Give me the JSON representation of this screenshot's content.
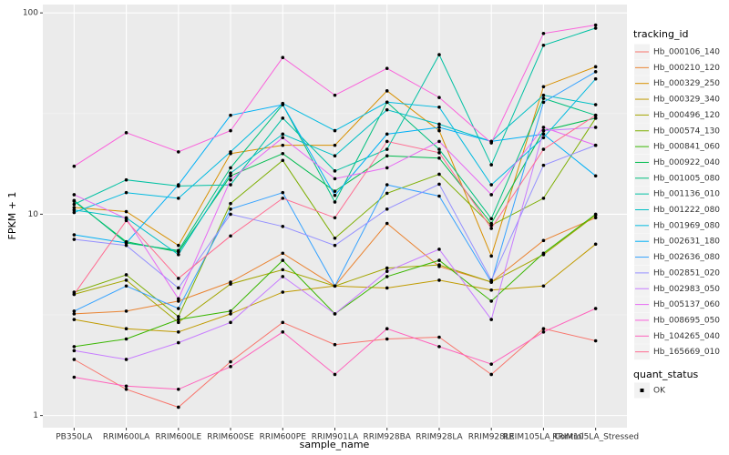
{
  "chart_data": {
    "type": "line",
    "log_y": true,
    "grid": true,
    "legend_position": "right",
    "x_label": "sample_name",
    "y_label": "FPKM + 1",
    "legend_title": "tracking_id",
    "shape_legend": {
      "title": "quant_status",
      "items": [
        "OK"
      ]
    },
    "categories": [
      "PB350LA",
      "RRIM600LA",
      "RRIM600LE",
      "RRIM600SE",
      "RRIM600PE",
      "RRIM901LA",
      "RRIM928BA",
      "RRIM928LA",
      "RRIM928LE",
      "RRIM105LA_Control",
      "RRIM105LA_Stressed"
    ],
    "ylim": [
      0.87,
      110
    ],
    "yticks": [
      1,
      10,
      100
    ],
    "series": [
      {
        "name": "Hb_000106_140",
        "color": "#F8766D",
        "values": [
          1.9,
          1.35,
          1.1,
          1.85,
          2.9,
          2.25,
          2.4,
          2.45,
          1.6,
          2.7,
          2.35
        ]
      },
      {
        "name": "Hb_000210_120",
        "color": "#EA8331",
        "values": [
          3.2,
          3.3,
          3.7,
          4.6,
          6.4,
          4.4,
          9,
          5.5,
          4.6,
          7.4,
          9.6
        ]
      },
      {
        "name": "Hb_000329_250",
        "color": "#D89000",
        "values": [
          10.8,
          10.3,
          7,
          20,
          22,
          22,
          41,
          26,
          6.2,
          43,
          54
        ]
      },
      {
        "name": "Hb_000329_340",
        "color": "#C09B00",
        "values": [
          3,
          2.7,
          2.6,
          3.2,
          4.1,
          4.4,
          4.3,
          4.7,
          4.2,
          4.4,
          7.1
        ]
      },
      {
        "name": "Hb_000496_120",
        "color": "#A3A500",
        "values": [
          4,
          4.7,
          2.9,
          4.5,
          5.3,
          4.4,
          5.4,
          5.6,
          4.6,
          6.3,
          9.9
        ]
      },
      {
        "name": "Hb_000574_130",
        "color": "#7CAE00",
        "values": [
          4.1,
          5,
          3.1,
          11.3,
          18.5,
          7.6,
          12.7,
          15.8,
          8.8,
          12,
          30
        ]
      },
      {
        "name": "Hb_000841_060",
        "color": "#39B600",
        "values": [
          2.2,
          2.4,
          3,
          3.3,
          5.9,
          3.2,
          4.9,
          5.9,
          3.7,
          6.4,
          10
        ]
      },
      {
        "name": "Hb_000922_040",
        "color": "#00BB4E",
        "values": [
          11.6,
          7.3,
          6.5,
          15.5,
          20,
          13,
          19.5,
          19,
          9,
          26,
          30
        ]
      },
      {
        "name": "Hb_001005_080",
        "color": "#00BF7D",
        "values": [
          11.7,
          7.2,
          6.6,
          17,
          35,
          11.5,
          36,
          21,
          9.5,
          37.6,
          31
        ]
      },
      {
        "name": "Hb_001136_010",
        "color": "#00C1A3",
        "values": [
          11.2,
          14.8,
          13.8,
          14,
          30,
          16.4,
          21,
          62,
          17.6,
          69,
          84
        ]
      },
      {
        "name": "Hb_001222_080",
        "color": "#00BFC4",
        "values": [
          10.5,
          9.6,
          6.3,
          16,
          25,
          19.5,
          33,
          28,
          23,
          39,
          35
        ]
      },
      {
        "name": "Hb_001969_080",
        "color": "#00BAE0",
        "values": [
          10.2,
          12.8,
          12,
          20.4,
          35.5,
          26,
          36,
          34,
          14,
          24,
          47
        ]
      },
      {
        "name": "Hb_002631_180",
        "color": "#00B0F6",
        "values": [
          7.9,
          7.2,
          14,
          31,
          35,
          12.4,
          25,
          27,
          23,
          25,
          15.5
        ]
      },
      {
        "name": "Hb_002636_080",
        "color": "#35A2FF",
        "values": [
          3.3,
          4.4,
          3.4,
          10.6,
          12.8,
          4.4,
          14,
          12.3,
          4.6,
          36,
          51
        ]
      },
      {
        "name": "Hb_002851_020",
        "color": "#9590FF",
        "values": [
          7.5,
          7,
          4.3,
          10,
          8.7,
          7,
          10.6,
          14.1,
          4.7,
          17.5,
          22
        ]
      },
      {
        "name": "Hb_002983_050",
        "color": "#C77CFF",
        "values": [
          2.1,
          1.9,
          2.3,
          2.9,
          4.9,
          3.2,
          5.2,
          6.7,
          3,
          26,
          27
        ]
      },
      {
        "name": "Hb_005137_060",
        "color": "#E76BF3",
        "values": [
          12.5,
          9.5,
          3.8,
          14.8,
          24,
          15,
          17,
          23,
          12.5,
          27,
          22
        ]
      },
      {
        "name": "Hb_008695_050",
        "color": "#FA62DB",
        "values": [
          17.3,
          25.4,
          20.4,
          26,
          60,
          39,
          53,
          38,
          22.6,
          79,
          87
        ]
      },
      {
        "name": "Hb_104265_040",
        "color": "#FF62BC",
        "values": [
          1.55,
          1.4,
          1.35,
          1.75,
          2.6,
          1.6,
          2.7,
          2.2,
          1.8,
          2.6,
          3.4
        ]
      },
      {
        "name": "Hb_165669_010",
        "color": "#FF6C91",
        "values": [
          4,
          9.3,
          4.8,
          7.8,
          12,
          9.6,
          23,
          20.2,
          8.5,
          21,
          31
        ]
      }
    ]
  }
}
